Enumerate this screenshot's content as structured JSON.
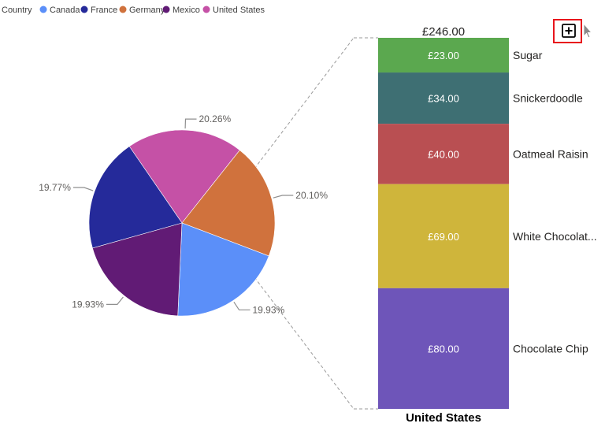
{
  "legend": {
    "title": "Country"
  },
  "colors": {
    "Canada": "#5b8ff9",
    "France": "#252a9a",
    "Germany": "#d0723d",
    "Mexico": "#611b75",
    "United States": "#c551a6"
  },
  "icons": {
    "expand": "plus-square-icon",
    "cursor": "mouse-pointer-icon"
  },
  "chart_data": [
    {
      "type": "pie",
      "legend_title": "Country",
      "legend_position": "top-left",
      "slices": [
        {
          "name": "United States",
          "percent": 20.26,
          "label": "20.26%",
          "color": "#c551a6"
        },
        {
          "name": "Germany",
          "percent": 20.1,
          "label": "20.10%",
          "color": "#d0723d"
        },
        {
          "name": "Canada",
          "percent": 19.93,
          "label": "19.93%",
          "color": "#5b8ff9"
        },
        {
          "name": "Mexico",
          "percent": 19.93,
          "label": "19.93%",
          "color": "#611b75"
        },
        {
          "name": "France",
          "percent": 19.77,
          "label": "19.77%",
          "color": "#252a9a"
        }
      ]
    },
    {
      "type": "bar",
      "stacked": true,
      "category": "United States",
      "total_label": "£246.00",
      "segments": [
        {
          "name": "Sugar",
          "value": 23,
          "label": "£23.00",
          "color": "#5ba84f"
        },
        {
          "name": "Snickerdoodle",
          "value": 34,
          "label": "£34.00",
          "color": "#3e6f73"
        },
        {
          "name": "Oatmeal Raisin",
          "value": 40,
          "label": "£40.00",
          "color": "#b94f52"
        },
        {
          "name": "White Chocolat...",
          "value": 69,
          "label": "£69.00",
          "color": "#cfb53b"
        },
        {
          "name": "Chocolate Chip",
          "value": 80,
          "label": "£80.00",
          "color": "#6e55b9"
        }
      ]
    }
  ]
}
